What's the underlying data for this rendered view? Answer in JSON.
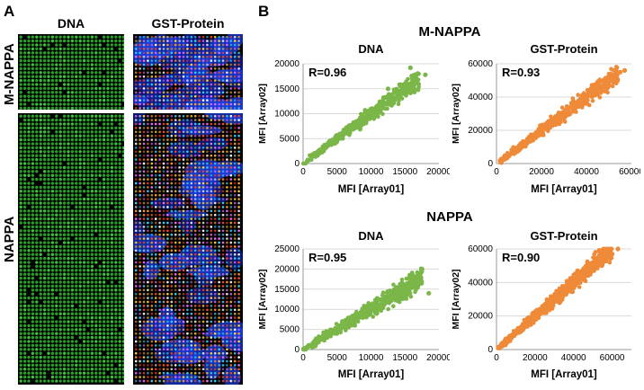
{
  "panel_a": {
    "letter": "A",
    "col_dna": "DNA",
    "col_gst": "GST-Protein",
    "row_mnappa": "M-NAPPA",
    "row_nappa": "NAPPA"
  },
  "panel_b": {
    "letter": "B",
    "title_mnappa": "M-NAPPA",
    "title_nappa": "NAPPA"
  },
  "colors": {
    "green": "#7ab648",
    "orange": "#ee8a38",
    "array_green": "#2aa52a",
    "array_blue": "#1230c8"
  },
  "chart_data": [
    {
      "type": "scatter",
      "title": "DNA",
      "annotation": "R=0.96",
      "xlabel": "MFI [Array01]",
      "ylabel": "MFI [Array02]",
      "xlim": [
        0,
        20000
      ],
      "ylim": [
        0,
        20000
      ],
      "xticks": [
        "0",
        "5000",
        "10000",
        "15000",
        "20000"
      ],
      "yticks": [
        "0",
        "5000",
        "10000",
        "15000",
        "20000"
      ],
      "color": "#7ab648",
      "x": [
        1500,
        3000,
        4000,
        4500,
        5000,
        5500,
        6000,
        6500,
        7000,
        7500,
        8000,
        8500,
        9000,
        9500,
        10000,
        10500,
        11000,
        12500,
        15800,
        18000
      ],
      "y": [
        1800,
        3000,
        4200,
        4600,
        5200,
        5400,
        6300,
        6700,
        7000,
        7800,
        8000,
        8700,
        9000,
        9800,
        10000,
        10800,
        11500,
        15000,
        19200,
        17800
      ]
    },
    {
      "type": "scatter",
      "title": "GST-Protein",
      "annotation": "R=0.93",
      "xlabel": "MFI [Array01]",
      "ylabel": "MFI [Array02]",
      "xlim": [
        0,
        60000
      ],
      "ylim": [
        0,
        60000
      ],
      "xticks": [
        "0",
        "20000",
        "40000",
        "60000"
      ],
      "yticks": [
        "0",
        "20000",
        "40000",
        "60000"
      ],
      "color": "#ee8a38",
      "x": [
        4000,
        8000,
        12000,
        15000,
        18000,
        20000,
        22000,
        25000,
        28000,
        30000,
        32000,
        35000,
        38000,
        40000,
        42000,
        45000,
        48000,
        50000,
        52000,
        55000,
        57000
      ],
      "y": [
        3000,
        9000,
        12000,
        14000,
        19000,
        20000,
        24000,
        23000,
        30000,
        28000,
        33000,
        34000,
        40000,
        38000,
        45000,
        43000,
        48000,
        51000,
        49000,
        55000,
        56000
      ]
    },
    {
      "type": "scatter",
      "title": "DNA",
      "annotation": "R=0.95",
      "xlabel": "MFI [Array01]",
      "ylabel": "MFI [Array02]",
      "xlim": [
        0,
        20000
      ],
      "ylim": [
        0,
        25000
      ],
      "xticks": [
        "0",
        "5000",
        "10000",
        "15000",
        "20000"
      ],
      "yticks": [
        "0",
        "5000",
        "10000",
        "15000",
        "20000",
        "25000"
      ],
      "color": "#7ab648",
      "x": [
        200,
        1000,
        2000,
        3000,
        4000,
        5000,
        6000,
        7000,
        8000,
        9000,
        10000,
        11000,
        12000,
        13000,
        14000,
        15000,
        16000,
        17500,
        18500
      ],
      "y": [
        300,
        1100,
        2000,
        3200,
        4100,
        5200,
        6300,
        6800,
        8400,
        9200,
        10200,
        11000,
        12500,
        13100,
        14500,
        15200,
        17800,
        20000,
        14000
      ]
    },
    {
      "type": "scatter",
      "title": "GST-Protein",
      "annotation": "R=0.90",
      "xlabel": "MFI [Array01]",
      "ylabel": "MFI [Array02]",
      "xlim": [
        0,
        70000
      ],
      "ylim": [
        0,
        60000
      ],
      "xticks": [
        "0",
        "20000",
        "40000",
        "60000"
      ],
      "yticks": [
        "0",
        "20000",
        "40000",
        "60000"
      ],
      "color": "#ee8a38",
      "x": [
        1000,
        5000,
        10000,
        15000,
        20000,
        25000,
        30000,
        35000,
        40000,
        45000,
        50000,
        55000,
        60000,
        63000
      ],
      "y": [
        1000,
        6000,
        10000,
        15000,
        20000,
        24000,
        30000,
        34000,
        40000,
        42000,
        48000,
        54000,
        57000,
        60000
      ]
    }
  ]
}
